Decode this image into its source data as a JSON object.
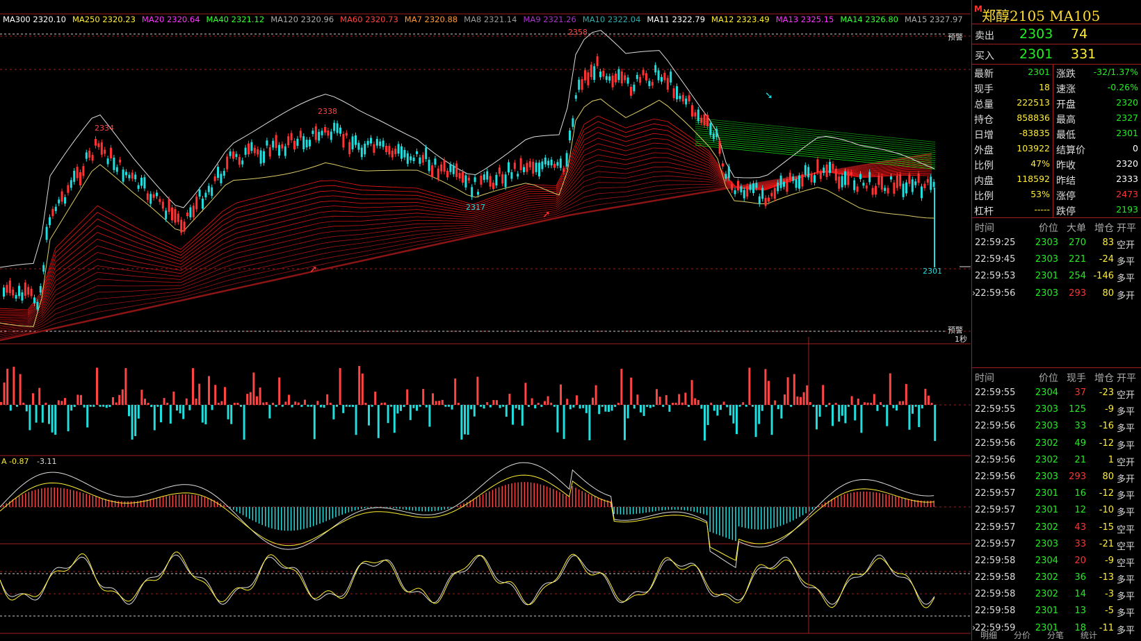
{
  "colors": {
    "up": "#ff3333",
    "down": "#22dddd",
    "grid": "#a02020",
    "green": "#22ee22",
    "yellow": "#ffee33"
  },
  "ma_labels": [
    {
      "text": "MA300 2320.10",
      "color": "#ffffff"
    },
    {
      "text": "MA250 2320.23",
      "color": "#ffee33"
    },
    {
      "text": "MA20 2320.64",
      "color": "#ff33ff"
    },
    {
      "text": "MA40 2321.12",
      "color": "#33ff33"
    },
    {
      "text": "MA120 2320.96",
      "color": "#aaaaaa"
    },
    {
      "text": "MA60 2320.73",
      "color": "#ff4444"
    },
    {
      "text": "MA7 2320.88",
      "color": "#ff9933"
    },
    {
      "text": "MA8 2321.14",
      "color": "#999999"
    },
    {
      "text": "MA9 2321.26",
      "color": "#aa33cc"
    },
    {
      "text": "MA10 2322.04",
      "color": "#33aaaa"
    },
    {
      "text": "MA11 2322.79",
      "color": "#ffffff"
    },
    {
      "text": "MA12 2323.49",
      "color": "#ffee33"
    },
    {
      "text": "MA13 2325.15",
      "color": "#ff33ff"
    },
    {
      "text": "MA14 2326.80",
      "color": "#33ff33"
    },
    {
      "text": "MA15 2327.97",
      "color": "#aaaaaa"
    }
  ],
  "price_labels": {
    "p2334": "2334",
    "p2338": "2338",
    "p2358": "2358",
    "p2317": "2317",
    "p2301": "2301"
  },
  "alert_label": "预警",
  "interval_label": "1秒",
  "macd_labels": [
    "A -0.87",
    "-3.11"
  ],
  "panel": {
    "title": "郑醇2105  MA105",
    "marker": "M",
    "sell": {
      "label": "卖出",
      "price": "2303",
      "vol": "74"
    },
    "buy": {
      "label": "买入",
      "price": "2301",
      "vol": "331"
    },
    "stats": [
      {
        "k1": "最新",
        "v1": "2301",
        "c1": "#22ee22",
        "k2": "涨跌",
        "v2": "-32/1.37%",
        "c2": "#22ee22"
      },
      {
        "k1": "现手",
        "v1": "18",
        "c1": "#ffee33",
        "k2": "速涨",
        "v2": "-0.26%",
        "c2": "#22ee22"
      },
      {
        "k1": "总量",
        "v1": "222513",
        "c1": "#ffee33",
        "k2": "开盘",
        "v2": "2320",
        "c2": "#22ee22"
      },
      {
        "k1": "持仓",
        "v1": "858836",
        "c1": "#ffee33",
        "k2": "最高",
        "v2": "2327",
        "c2": "#22ee22"
      },
      {
        "k1": "日增",
        "v1": "-83835",
        "c1": "#ffee33",
        "k2": "最低",
        "v2": "2301",
        "c2": "#22ee22"
      },
      {
        "k1": "外盘",
        "v1": "103922",
        "c1": "#ffee33",
        "k2": "结算价",
        "v2": "0",
        "c2": "#ffffff"
      },
      {
        "k1": "比例",
        "v1": "47%",
        "c1": "#ffee33",
        "k2": "昨收",
        "v2": "2320",
        "c2": "#ffffff"
      },
      {
        "k1": "内盘",
        "v1": "118592",
        "c1": "#ffee33",
        "k2": "昨结",
        "v2": "2333",
        "c2": "#ffffff"
      },
      {
        "k1": "比例",
        "v1": "53%",
        "c1": "#ffee33",
        "k2": "涨停",
        "v2": "2473",
        "c2": "#ff3333"
      },
      {
        "k1": "杠杆",
        "v1": "-----",
        "c1": "#ffee33",
        "k2": "跌停",
        "v2": "2193",
        "c2": "#22ee22"
      }
    ],
    "big_headers": [
      "时间",
      "价位",
      "大单",
      "增仓",
      "开平"
    ],
    "big_rows": [
      {
        "sel": "",
        "time": "22:59:25",
        "price": "2303",
        "vol": "270",
        "vc": "#22ee22",
        "chg": "83",
        "op": "空开"
      },
      {
        "sel": "",
        "time": "22:59:45",
        "price": "2303",
        "vol": "221",
        "vc": "#22ee22",
        "chg": "-24",
        "op": "多平"
      },
      {
        "sel": "",
        "time": "22:59:53",
        "price": "2301",
        "vol": "254",
        "vc": "#22ee22",
        "chg": "-146",
        "op": "多平"
      },
      {
        "sel": "›",
        "time": "22:59:56",
        "price": "2303",
        "vol": "293",
        "vc": "#ff3333",
        "chg": "80",
        "op": "多开"
      }
    ],
    "tick_headers": [
      "时间",
      "价位",
      "现手",
      "增仓",
      "开平"
    ],
    "tick_rows": [
      {
        "sel": "",
        "time": "22:59:55",
        "price": "2304",
        "vol": "37",
        "vc": "#ff3333",
        "chg": "-23",
        "op": "空开"
      },
      {
        "sel": "",
        "time": "22:59:55",
        "price": "2303",
        "vol": "125",
        "vc": "#22ee22",
        "chg": "-9",
        "op": "多平"
      },
      {
        "sel": "",
        "time": "22:59:56",
        "price": "2303",
        "vol": "33",
        "vc": "#22ee22",
        "chg": "-16",
        "op": "多平"
      },
      {
        "sel": "",
        "time": "22:59:56",
        "price": "2302",
        "vol": "49",
        "vc": "#22ee22",
        "chg": "-12",
        "op": "多平"
      },
      {
        "sel": "",
        "time": "22:59:56",
        "price": "2302",
        "vol": "21",
        "vc": "#22ee22",
        "chg": "1",
        "op": "空开"
      },
      {
        "sel": "",
        "time": "22:59:56",
        "price": "2303",
        "vol": "293",
        "vc": "#ff3333",
        "chg": "80",
        "op": "多开"
      },
      {
        "sel": "",
        "time": "22:59:57",
        "price": "2301",
        "vol": "16",
        "vc": "#22ee22",
        "chg": "-12",
        "op": "多平"
      },
      {
        "sel": "",
        "time": "22:59:57",
        "price": "2301",
        "vol": "12",
        "vc": "#22ee22",
        "chg": "-10",
        "op": "多平"
      },
      {
        "sel": "",
        "time": "22:59:57",
        "price": "2302",
        "vol": "43",
        "vc": "#ff3333",
        "chg": "-15",
        "op": "空平"
      },
      {
        "sel": "",
        "time": "22:59:57",
        "price": "2303",
        "vol": "33",
        "vc": "#ff3333",
        "chg": "-21",
        "op": "空平"
      },
      {
        "sel": "",
        "time": "22:59:58",
        "price": "2304",
        "vol": "20",
        "vc": "#ff3333",
        "chg": "-9",
        "op": "空平"
      },
      {
        "sel": "",
        "time": "22:59:58",
        "price": "2302",
        "vol": "36",
        "vc": "#22ee22",
        "chg": "-13",
        "op": "多平"
      },
      {
        "sel": "",
        "time": "22:59:58",
        "price": "2302",
        "vol": "14",
        "vc": "#22ee22",
        "chg": "-3",
        "op": "多平"
      },
      {
        "sel": "",
        "time": "22:59:58",
        "price": "2301",
        "vol": "13",
        "vc": "#22ee22",
        "chg": "-5",
        "op": "多平"
      },
      {
        "sel": "›",
        "time": "22:59:59",
        "price": "2301",
        "vol": "18",
        "vc": "#22ee22",
        "chg": "-11",
        "op": "多平"
      }
    ],
    "tabs": [
      "明细",
      "分价",
      "分笔",
      "统计"
    ]
  }
}
